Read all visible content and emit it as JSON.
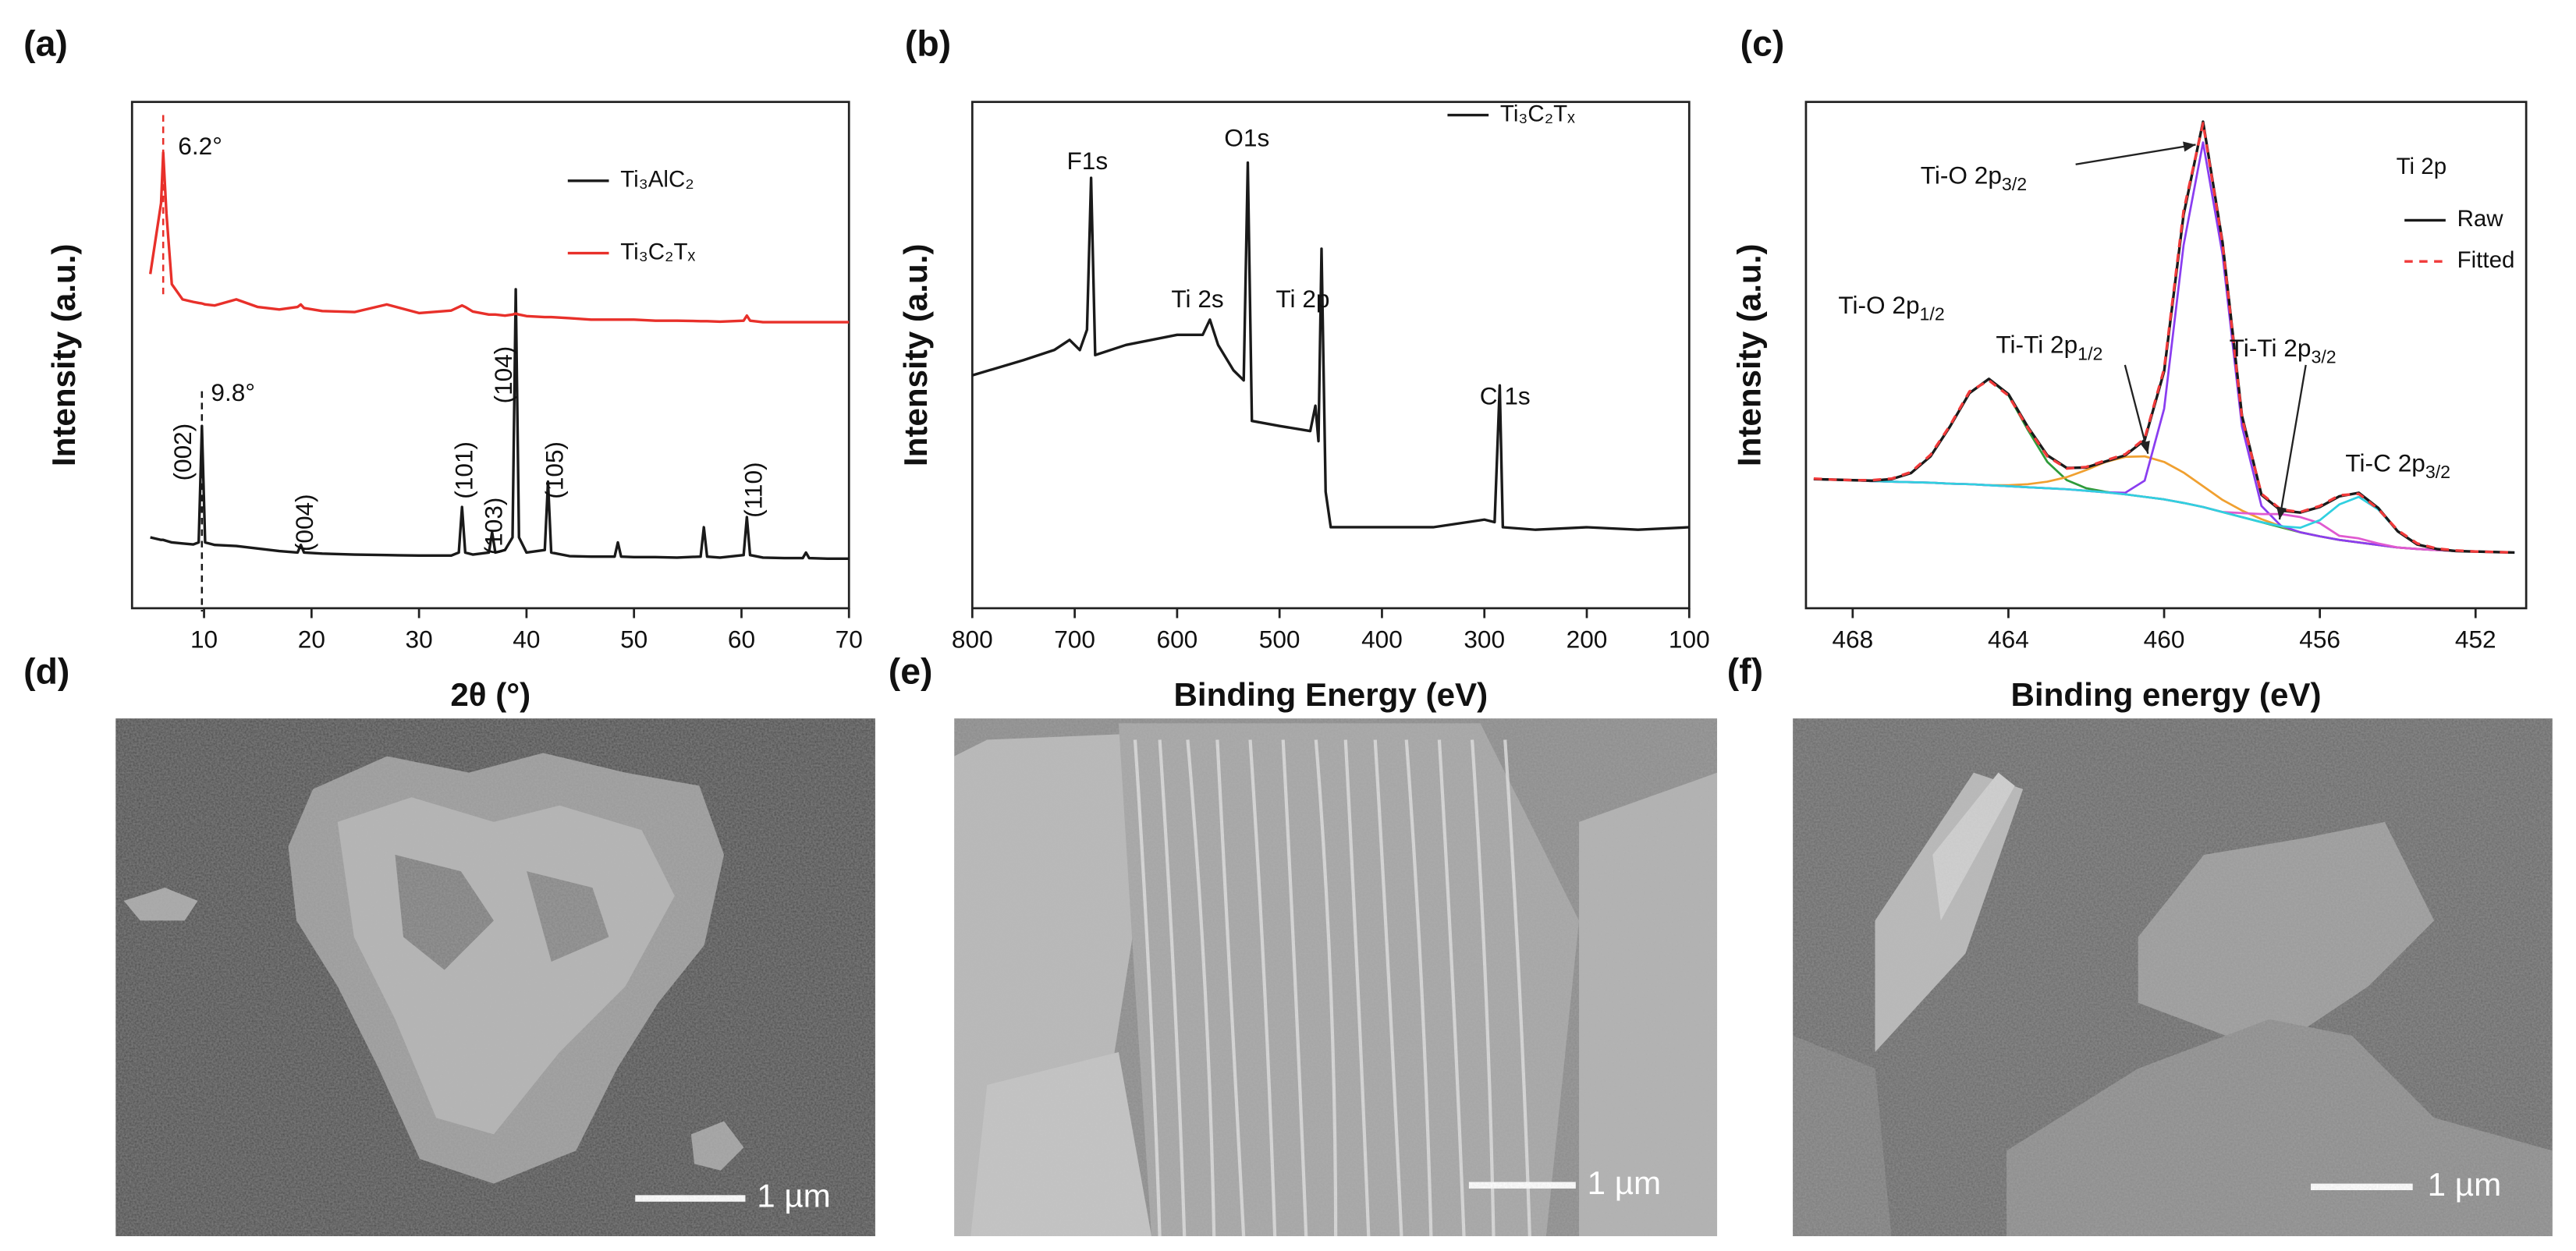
{
  "chart_data": [
    {
      "type": "line",
      "panel": "(a)",
      "xlabel": "2θ (°)",
      "ylabel": "Intensity (a.u.)",
      "xlim": [
        3.3,
        70
      ],
      "xticks": [
        10,
        20,
        30,
        40,
        50,
        60,
        70
      ],
      "ylim": [
        0,
        100
      ],
      "legend": "upper right",
      "x": [
        5,
        6,
        6.2,
        6.5,
        7,
        8,
        9,
        9.5,
        9.8,
        10.1,
        11,
        13,
        15,
        17,
        18.7,
        19,
        19.3,
        21,
        24,
        27,
        30,
        33,
        33.7,
        34,
        34.3,
        35,
        36.5,
        36.8,
        37.1,
        38,
        38.7,
        39,
        39.3,
        40,
        41.7,
        42,
        42.3,
        44,
        46,
        48.2,
        48.5,
        48.8,
        50,
        52,
        54,
        56.2,
        56.5,
        56.8,
        58,
        60.2,
        60.5,
        60.8,
        62,
        64,
        65.7,
        66,
        66.3,
        68,
        70
      ],
      "series": [
        {
          "name": "Ti₃AlC₂",
          "color": "#1a1a1a",
          "values": [
            14,
            13.5,
            13.5,
            13.3,
            13,
            12.8,
            12.6,
            13,
            36,
            13,
            12.5,
            12.3,
            11.8,
            11.3,
            11,
            12.5,
            11,
            10.8,
            10.6,
            10.5,
            10.4,
            10.4,
            11,
            20,
            11,
            10.6,
            11,
            15,
            11,
            11.5,
            14,
            63,
            14,
            11,
            11.5,
            25,
            11,
            10.3,
            10.2,
            10.2,
            13,
            10.2,
            10.1,
            10.1,
            10,
            10.2,
            16,
            10.2,
            10,
            10.5,
            18,
            10.5,
            10,
            9.9,
            9.9,
            11,
            9.9,
            9.8,
            9.8
          ]
        },
        {
          "name": "Ti₃C₂Tₓ",
          "color": "#e8302a",
          "values": [
            66,
            80,
            90,
            78,
            64,
            61,
            60.5,
            60.3,
            60.2,
            60,
            59.8,
            61,
            59.5,
            59,
            59.5,
            60,
            59.3,
            58.7,
            58.5,
            60,
            58.3,
            58.8,
            59.5,
            59.8,
            59.5,
            58.6,
            58,
            58,
            58,
            57.8,
            58,
            58.2,
            58,
            57.7,
            57.5,
            57.5,
            57.5,
            57.3,
            57,
            57,
            57,
            57,
            57,
            56.8,
            56.8,
            56.7,
            56.7,
            56.7,
            56.6,
            56.8,
            57.8,
            56.8,
            56.5,
            56.5,
            56.5,
            56.5,
            56.5,
            56.5,
            56.5
          ]
        }
      ],
      "reference_lines": [
        {
          "x": 6.2,
          "color": "#e8302a"
        },
        {
          "x": 9.8,
          "color": "#1a1a1a"
        }
      ],
      "annotations": [
        "6.2°",
        "9.8°",
        "(002)",
        "(004)",
        "(101)",
        "(103)",
        "(104)",
        "(105)",
        "(110)"
      ]
    },
    {
      "type": "line",
      "panel": "(b)",
      "xlabel": "Binding Energy (eV)",
      "ylabel": "Intensity (a.u.)",
      "xlim": [
        800,
        100
      ],
      "xticks": [
        800,
        700,
        600,
        500,
        400,
        300,
        200,
        100
      ],
      "ylim": [
        0,
        100
      ],
      "legend": "upper right",
      "x": [
        800,
        750,
        720,
        705,
        695,
        688,
        684,
        680,
        650,
        600,
        575,
        568,
        560,
        545,
        535,
        531,
        527,
        500,
        470,
        465,
        462,
        459,
        455,
        450,
        400,
        350,
        300,
        290,
        285,
        282,
        250,
        200,
        150,
        100
      ],
      "series": [
        {
          "name": "Ti₃C₂Tₓ",
          "color": "#1a1a1a",
          "values": [
            46,
            49,
            51,
            53,
            51,
            55,
            85,
            50,
            52,
            54,
            54,
            57,
            52,
            47,
            45,
            88,
            37,
            36,
            35,
            40,
            33,
            71,
            23,
            16,
            16,
            16,
            17.5,
            17,
            44,
            16,
            15.5,
            16,
            15.5,
            16
          ]
        }
      ],
      "annotations": [
        "F1s",
        "O1s",
        "Ti 2s",
        "Ti 2p",
        "C 1s"
      ]
    },
    {
      "type": "line",
      "panel": "(c)",
      "xlabel": "Binding energy (eV)",
      "ylabel": "Intensity (a.u.)",
      "xlim": [
        469.2,
        450.7
      ],
      "xticks": [
        468,
        464,
        460,
        456,
        452
      ],
      "ylim": [
        0,
        100
      ],
      "legend": "upper right",
      "legend_title": "Ti 2p",
      "x": [
        469,
        468.5,
        468,
        467.5,
        467,
        466.5,
        466,
        465.5,
        465,
        464.5,
        464,
        463.5,
        463,
        462.5,
        462,
        461.5,
        461,
        460.5,
        460,
        459.5,
        459,
        458.5,
        458,
        457.5,
        457,
        456.5,
        456,
        455.5,
        455,
        454.5,
        454,
        453.5,
        453,
        452.5,
        452,
        451.5,
        451
      ],
      "series": [
        {
          "name": "Raw",
          "color": "#1a1a1a",
          "style": "solid",
          "values": [
            25.5,
            25.4,
            25.3,
            25.2,
            25.5,
            26.7,
            30.0,
            35.9,
            42.5,
            45.3,
            42.3,
            35.8,
            30.2,
            27.7,
            27.8,
            29.0,
            30.2,
            33.2,
            46.8,
            77.7,
            96.1,
            72.3,
            38.0,
            22.4,
            19.3,
            18.9,
            20.0,
            22.1,
            22.8,
            19.8,
            15.2,
            12.6,
            11.7,
            11.3,
            11.2,
            11.1,
            11.0
          ]
        },
        {
          "name": "Fitted",
          "color": "#f03a3a",
          "style": "dashed",
          "values": [
            25.6,
            25.4,
            25.3,
            25.3,
            25.6,
            26.9,
            30.3,
            36.1,
            42.8,
            45.0,
            42.0,
            35.6,
            30.0,
            27.6,
            27.9,
            29.2,
            30.4,
            33.5,
            47.3,
            78.5,
            95.8,
            72.0,
            37.6,
            22.6,
            19.5,
            19.0,
            20.2,
            22.3,
            22.6,
            19.6,
            15.4,
            12.8,
            11.8,
            11.4,
            11.2,
            11.1,
            11.0
          ]
        }
      ],
      "components": [
        {
          "color": "#2e9b3a",
          "values": [
            25.5,
            25.4,
            25.3,
            25.2,
            25.5,
            26.7,
            30.0,
            35.9,
            42.5,
            45.3,
            42.1,
            35.2,
            28.9,
            25.3,
            23.7,
            23.0,
            22.5,
            22.0,
            21.5,
            20.8,
            20.0,
            19.0,
            18.0,
            17.0,
            16.0,
            15.0,
            14.2,
            13.5,
            13.0,
            12.5,
            12.0,
            11.7,
            11.5,
            11.3,
            11.2,
            11.1,
            11.0
          ]
        },
        {
          "color": "#f0a030",
          "values": [
            25.5,
            25.4,
            25.3,
            25.1,
            25.0,
            24.9,
            24.8,
            24.6,
            24.5,
            24.3,
            24.3,
            24.5,
            25.0,
            25.9,
            27.3,
            28.9,
            29.9,
            30.0,
            28.9,
            26.8,
            24.1,
            21.4,
            19.3,
            17.6,
            16.2,
            15.0,
            14.2,
            13.5,
            13.0,
            12.5,
            12.0,
            11.7,
            11.5,
            11.3,
            11.2,
            11.1,
            11.0
          ]
        },
        {
          "color": "#8a3df0",
          "values": [
            25.5,
            25.4,
            25.3,
            25.1,
            25.0,
            24.9,
            24.8,
            24.6,
            24.5,
            24.3,
            24.1,
            23.9,
            23.7,
            23.5,
            23.2,
            22.9,
            22.8,
            25.2,
            39.4,
            71.7,
            92.0,
            69.9,
            35.9,
            20.2,
            16.3,
            15.0,
            14.2,
            13.5,
            13.0,
            12.5,
            12.0,
            11.7,
            11.5,
            11.3,
            11.2,
            11.1,
            11.0
          ]
        },
        {
          "color": "#e05ad0",
          "values": [
            25.5,
            25.4,
            25.3,
            25.1,
            25.0,
            24.9,
            24.8,
            24.6,
            24.5,
            24.3,
            24.1,
            23.9,
            23.7,
            23.5,
            23.2,
            22.9,
            22.5,
            22.0,
            21.5,
            20.8,
            20.0,
            19.0,
            18.8,
            18.6,
            18.6,
            18.0,
            16.8,
            14.3,
            13.8,
            12.8,
            12.0,
            11.7,
            11.5,
            11.3,
            11.2,
            11.1,
            11.0
          ]
        },
        {
          "color": "#30d0e0",
          "values": [
            25.5,
            25.4,
            25.3,
            25.1,
            25.0,
            24.9,
            24.8,
            24.6,
            24.5,
            24.3,
            24.1,
            23.9,
            23.7,
            23.5,
            23.2,
            22.9,
            22.5,
            22.0,
            21.5,
            20.8,
            20.0,
            19.0,
            18.0,
            17.0,
            16.2,
            15.9,
            17.4,
            20.5,
            22.0,
            19.5,
            15.2,
            12.6,
            11.7,
            11.3,
            11.2,
            11.1,
            11.0
          ]
        }
      ],
      "annotations": [
        {
          "text": "Ti-O 2p",
          "sub": "3/2"
        },
        {
          "text": "Ti-O 2p",
          "sub": "1/2"
        },
        {
          "text": "Ti-Ti 2p",
          "sub": "1/2"
        },
        {
          "text": "Ti-Ti 2p",
          "sub": "3/2"
        },
        {
          "text": "Ti-C 2p",
          "sub": "3/2"
        }
      ]
    }
  ],
  "images": [
    {
      "panel": "(d)",
      "scale_bar": "1 µm"
    },
    {
      "panel": "(e)",
      "scale_bar": "1 µm"
    },
    {
      "panel": "(f)",
      "scale_bar": "1 µm"
    }
  ]
}
